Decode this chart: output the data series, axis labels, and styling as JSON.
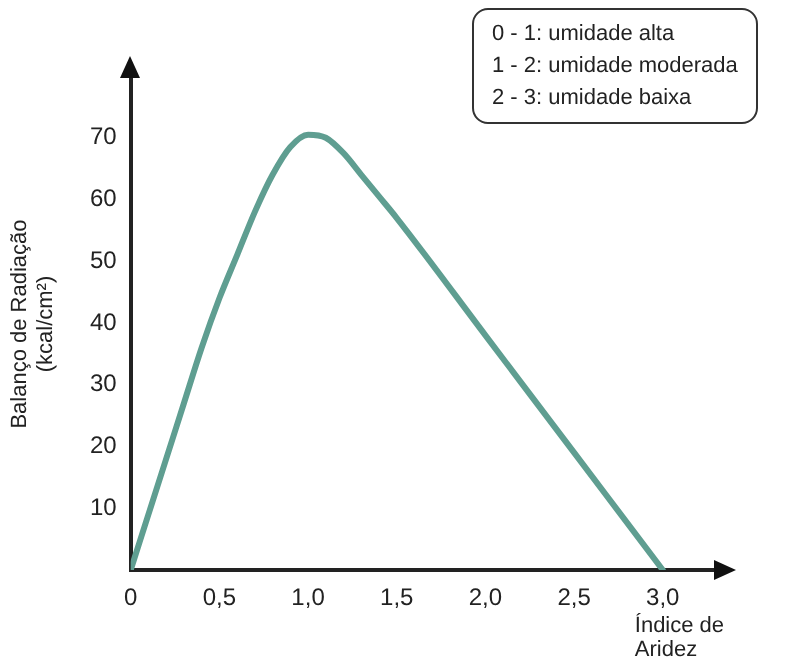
{
  "chart_data": {
    "type": "line",
    "xlabel": "Índice de Aridez",
    "ylabel": "Balanço de Radiação (kcal/cm²)",
    "annotations": [
      "0 - 1: umidade alta",
      "1 - 2: umidade moderada",
      "2 - 3: umidade baixa"
    ],
    "x": [
      0,
      0.1,
      0.2,
      0.3,
      0.4,
      0.5,
      0.6,
      0.7,
      0.8,
      0.9,
      1.0,
      1.1,
      1.2,
      1.3,
      1.4,
      1.5,
      2.0,
      2.5,
      3.0
    ],
    "series": [
      {
        "color": "#5f9e91",
        "values": [
          0,
          9,
          18,
          27,
          36,
          44,
          51,
          58,
          64,
          68.5,
          70.5,
          70,
          67.5,
          64,
          60.5,
          57,
          38,
          19,
          0
        ]
      }
    ],
    "xlim": [
      0,
      3.3
    ],
    "ylim": [
      0,
      80
    ],
    "xticks": [
      0,
      {
        "value": 0.5,
        "label": "0,5"
      },
      {
        "value": 1,
        "label": "1,0"
      },
      {
        "value": 1.5,
        "label": "1,5"
      },
      {
        "value": 2,
        "label": "2,0"
      },
      {
        "value": 2.5,
        "label": "2,5"
      },
      {
        "value": 3,
        "label": "3,0"
      }
    ],
    "yticks": [
      10,
      20,
      30,
      40,
      50,
      60,
      70
    ],
    "grid": false,
    "legend": false,
    "marker": "none",
    "line_style": "solid"
  }
}
